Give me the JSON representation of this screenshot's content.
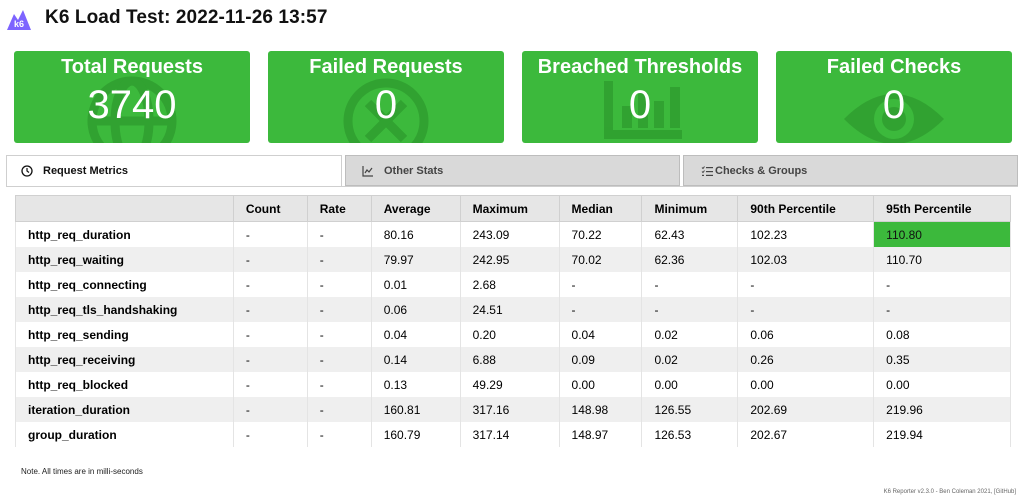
{
  "header": {
    "title": "K6 Load Test: 2022-11-26 13:57",
    "logo_text": "k6"
  },
  "colors": {
    "green": "#3cb93c",
    "logo_purple": "#7d64ff"
  },
  "cards": [
    {
      "label": "Total Requests",
      "value": "3740",
      "icon": "globe-icon"
    },
    {
      "label": "Failed Requests",
      "value": "0",
      "icon": "x-circle-icon"
    },
    {
      "label": "Breached Thresholds",
      "value": "0",
      "icon": "bar-chart-icon"
    },
    {
      "label": "Failed Checks",
      "value": "0",
      "icon": "eye-icon"
    }
  ],
  "tabs": [
    {
      "label": "Request Metrics",
      "icon": "clock-icon",
      "active": true
    },
    {
      "label": "Other Stats",
      "icon": "line-chart-icon",
      "active": false
    },
    {
      "label": "Checks & Groups",
      "icon": "list-check-icon",
      "active": false
    }
  ],
  "table": {
    "columns": [
      "",
      "Count",
      "Rate",
      "Average",
      "Maximum",
      "Median",
      "Minimum",
      "90th Percentile",
      "95th Percentile"
    ],
    "rows": [
      [
        "http_req_duration",
        "-",
        "-",
        "80.16",
        "243.09",
        "70.22",
        "62.43",
        "102.23",
        "110.80"
      ],
      [
        "http_req_waiting",
        "-",
        "-",
        "79.97",
        "242.95",
        "70.02",
        "62.36",
        "102.03",
        "110.70"
      ],
      [
        "http_req_connecting",
        "-",
        "-",
        "0.01",
        "2.68",
        "-",
        "-",
        "-",
        "-"
      ],
      [
        "http_req_tls_handshaking",
        "-",
        "-",
        "0.06",
        "24.51",
        "-",
        "-",
        "-",
        "-"
      ],
      [
        "http_req_sending",
        "-",
        "-",
        "0.04",
        "0.20",
        "0.04",
        "0.02",
        "0.06",
        "0.08"
      ],
      [
        "http_req_receiving",
        "-",
        "-",
        "0.14",
        "6.88",
        "0.09",
        "0.02",
        "0.26",
        "0.35"
      ],
      [
        "http_req_blocked",
        "-",
        "-",
        "0.13",
        "49.29",
        "0.00",
        "0.00",
        "0.00",
        "0.00"
      ],
      [
        "iteration_duration",
        "-",
        "-",
        "160.81",
        "317.16",
        "148.98",
        "126.55",
        "202.69",
        "219.96"
      ],
      [
        "group_duration",
        "-",
        "-",
        "160.79",
        "317.14",
        "148.97",
        "126.53",
        "202.67",
        "219.94"
      ]
    ]
  },
  "note": "Note. All times are in milli-seconds",
  "footer": "K6 Reporter v2.3.0 - Ben Coleman 2021, [GitHub]"
}
